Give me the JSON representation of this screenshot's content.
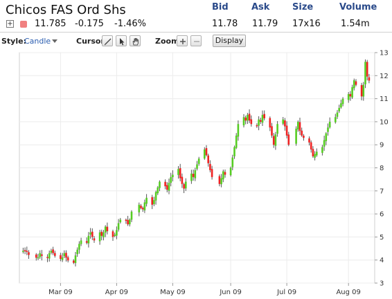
{
  "header": {
    "title": "Chicos FAS Ord Shs",
    "labels": {
      "bid": "Bid",
      "ask": "Ask",
      "size": "Size",
      "volume": "Volume"
    }
  },
  "quote": {
    "expand_icon": "plus-box-icon",
    "expand_symbol": "+",
    "swatch_color": "#f08080",
    "last": "11.785",
    "change": "-0.175",
    "change_pct": "-1.46%",
    "bid": "11.78",
    "ask": "11.79",
    "size": "17x16",
    "volume": "1.54m"
  },
  "toolbar": {
    "style_label": "Style:",
    "style_value": "Candle",
    "cursor_label": "Cursor:",
    "cursor_tools": [
      "pencil-icon",
      "arrow-pointer-icon",
      "hand-icon"
    ],
    "zoom_label": "Zoom:",
    "zoom_tools": [
      "zoom-in-icon",
      "zoom-out-icon"
    ],
    "display_label": "Display"
  },
  "chart_data": {
    "type": "candlestick",
    "title": "",
    "xlabel": "",
    "ylabel": "",
    "ylim": [
      3,
      13
    ],
    "y_ticks": [
      3,
      4,
      5,
      6,
      7,
      8,
      9,
      10,
      11,
      12,
      13
    ],
    "x_ticks": [
      "Mar 09",
      "Apr 09",
      "May 09",
      "Jun 09",
      "Jul 09",
      "Aug 09"
    ],
    "x_tick_dates": [
      "2009-03-02",
      "2009-04-01",
      "2009-05-01",
      "2009-06-01",
      "2009-07-01",
      "2009-08-03"
    ],
    "grid": true,
    "up_color": "#55cc22",
    "down_color": "#ee2222",
    "close_series": [
      [
        "2009-02-10",
        4.4
      ],
      [
        "2009-02-11",
        4.38
      ],
      [
        "2009-02-12",
        4.35
      ],
      [
        "2009-02-13",
        4.22
      ],
      [
        "2009-02-17",
        4.1
      ],
      [
        "2009-02-18",
        4.12
      ],
      [
        "2009-02-19",
        4.3
      ],
      [
        "2009-02-20",
        4.18
      ],
      [
        "2009-02-23",
        4.1
      ],
      [
        "2009-02-24",
        4.3
      ],
      [
        "2009-02-25",
        4.4
      ],
      [
        "2009-02-26",
        4.3
      ],
      [
        "2009-02-27",
        4.18
      ],
      [
        "2009-03-02",
        4.05
      ],
      [
        "2009-03-03",
        4.12
      ],
      [
        "2009-03-04",
        4.3
      ],
      [
        "2009-03-05",
        4.1
      ],
      [
        "2009-03-06",
        3.98
      ],
      [
        "2009-03-09",
        3.88
      ],
      [
        "2009-03-10",
        4.2
      ],
      [
        "2009-03-11",
        4.45
      ],
      [
        "2009-03-12",
        4.7
      ],
      [
        "2009-03-13",
        4.85
      ],
      [
        "2009-03-16",
        4.75
      ],
      [
        "2009-03-17",
        5.05
      ],
      [
        "2009-03-18",
        5.2
      ],
      [
        "2009-03-19",
        5.0
      ],
      [
        "2009-03-20",
        4.85
      ],
      [
        "2009-03-23",
        5.2
      ],
      [
        "2009-03-24",
        5.05
      ],
      [
        "2009-03-25",
        5.2
      ],
      [
        "2009-03-26",
        5.45
      ],
      [
        "2009-03-27",
        5.25
      ],
      [
        "2009-03-30",
        5.0
      ],
      [
        "2009-03-31",
        5.1
      ],
      [
        "2009-04-01",
        5.3
      ],
      [
        "2009-04-02",
        5.6
      ],
      [
        "2009-04-03",
        5.75
      ],
      [
        "2009-04-06",
        5.7
      ],
      [
        "2009-04-07",
        5.55
      ],
      [
        "2009-04-08",
        5.75
      ],
      [
        "2009-04-09",
        6.1
      ],
      [
        "2009-04-13",
        6.4
      ],
      [
        "2009-04-14",
        6.25
      ],
      [
        "2009-04-15",
        6.2
      ],
      [
        "2009-04-16",
        6.5
      ],
      [
        "2009-04-17",
        6.7
      ],
      [
        "2009-04-20",
        6.4
      ],
      [
        "2009-04-21",
        6.6
      ],
      [
        "2009-04-22",
        6.95
      ],
      [
        "2009-04-23",
        7.15
      ],
      [
        "2009-04-24",
        7.4
      ],
      [
        "2009-04-27",
        7.2
      ],
      [
        "2009-04-28",
        7.05
      ],
      [
        "2009-04-29",
        7.35
      ],
      [
        "2009-04-30",
        7.6
      ],
      [
        "2009-05-01",
        7.7
      ],
      [
        "2009-05-04",
        7.95
      ],
      [
        "2009-05-05",
        7.55
      ],
      [
        "2009-05-06",
        7.3
      ],
      [
        "2009-05-07",
        7.1
      ],
      [
        "2009-05-08",
        7.4
      ],
      [
        "2009-05-11",
        7.75
      ],
      [
        "2009-05-12",
        7.6
      ],
      [
        "2009-05-13",
        7.9
      ],
      [
        "2009-05-14",
        8.15
      ],
      [
        "2009-05-15",
        8.4
      ],
      [
        "2009-05-18",
        8.8
      ],
      [
        "2009-05-19",
        8.55
      ],
      [
        "2009-05-20",
        8.2
      ],
      [
        "2009-05-21",
        7.9
      ],
      [
        "2009-05-22",
        7.6
      ],
      [
        "2009-05-26",
        7.3
      ],
      [
        "2009-05-27",
        7.55
      ],
      [
        "2009-05-28",
        7.85
      ],
      [
        "2009-05-29",
        7.7
      ],
      [
        "2009-06-01",
        8.0
      ],
      [
        "2009-06-02",
        8.45
      ],
      [
        "2009-06-03",
        8.9
      ],
      [
        "2009-06-04",
        9.4
      ],
      [
        "2009-06-05",
        9.9
      ],
      [
        "2009-06-08",
        10.2
      ],
      [
        "2009-06-09",
        10.05
      ],
      [
        "2009-06-10",
        10.3
      ],
      [
        "2009-06-11",
        10.05
      ],
      [
        "2009-06-12",
        9.9
      ],
      [
        "2009-06-15",
        9.8
      ],
      [
        "2009-06-16",
        10.1
      ],
      [
        "2009-06-17",
        10.0
      ],
      [
        "2009-06-18",
        10.3
      ],
      [
        "2009-06-19",
        10.15
      ],
      [
        "2009-06-22",
        9.75
      ],
      [
        "2009-06-23",
        9.4
      ],
      [
        "2009-06-24",
        9.0
      ],
      [
        "2009-06-25",
        9.45
      ],
      [
        "2009-06-26",
        9.9
      ],
      [
        "2009-06-29",
        10.1
      ],
      [
        "2009-06-30",
        9.8
      ],
      [
        "2009-07-01",
        9.4
      ],
      [
        "2009-07-02",
        9.0
      ],
      [
        "2009-07-06",
        9.7
      ],
      [
        "2009-07-07",
        10.0
      ],
      [
        "2009-07-08",
        9.6
      ],
      [
        "2009-07-09",
        9.4
      ],
      [
        "2009-07-10",
        9.3
      ],
      [
        "2009-07-13",
        9.1
      ],
      [
        "2009-07-14",
        8.8
      ],
      [
        "2009-07-15",
        8.5
      ],
      [
        "2009-07-16",
        8.6
      ],
      [
        "2009-07-17",
        8.7
      ],
      [
        "2009-07-20",
        8.9
      ],
      [
        "2009-07-21",
        9.2
      ],
      [
        "2009-07-22",
        9.5
      ],
      [
        "2009-07-23",
        9.75
      ],
      [
        "2009-07-24",
        10.0
      ],
      [
        "2009-07-27",
        10.2
      ],
      [
        "2009-07-28",
        10.4
      ],
      [
        "2009-07-29",
        10.6
      ],
      [
        "2009-07-30",
        10.8
      ],
      [
        "2009-07-31",
        11.0
      ],
      [
        "2009-08-03",
        11.2
      ],
      [
        "2009-08-04",
        11.1
      ],
      [
        "2009-08-05",
        11.5
      ],
      [
        "2009-08-06",
        11.8
      ],
      [
        "2009-08-07",
        11.6
      ],
      [
        "2009-08-10",
        11.1
      ],
      [
        "2009-08-11",
        11.6
      ],
      [
        "2009-08-12",
        12.6
      ],
      [
        "2009-08-13",
        11.96
      ],
      [
        "2009-08-14",
        11.785
      ]
    ]
  }
}
